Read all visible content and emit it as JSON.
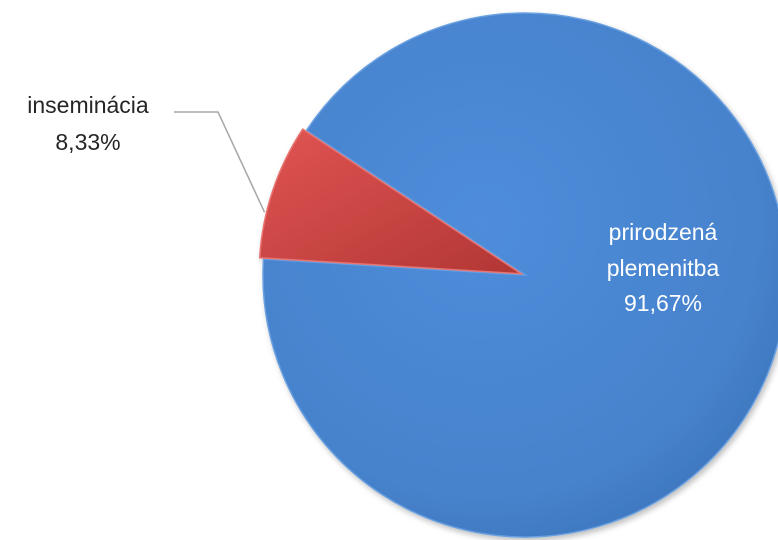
{
  "chart_data": {
    "type": "pie",
    "title": "",
    "slices": [
      {
        "label": "prirodzená plemenitba",
        "label_lines": [
          "prirodzená",
          "plemenitba"
        ],
        "value": 91.67,
        "value_label": "91,67%",
        "color": "#4a86d0"
      },
      {
        "label": "inseminácia",
        "label_lines": [
          "inseminácia"
        ],
        "value": 8.33,
        "value_label": "8,33%",
        "color": "#cf4543"
      }
    ],
    "legend": "none"
  }
}
